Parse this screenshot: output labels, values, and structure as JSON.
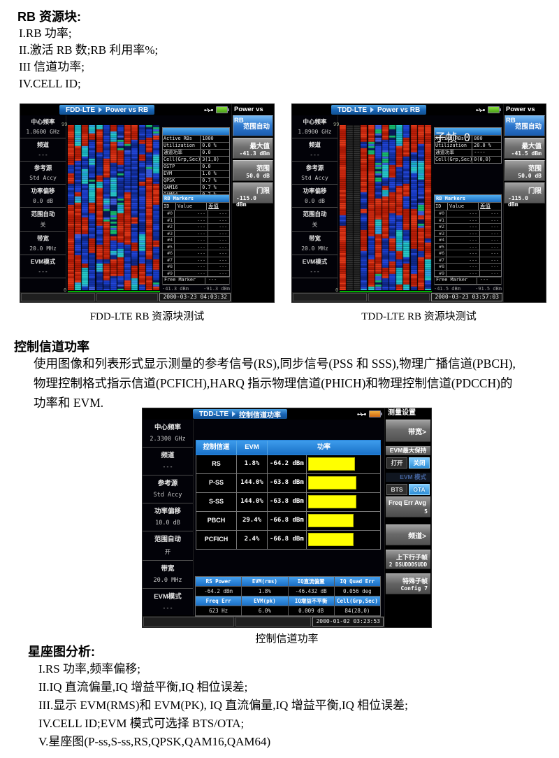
{
  "page": {
    "section1_title": "RB 资源块:",
    "section1_items": [
      "I.RB 功率;",
      "II.激活 RB 数;RB 利用率%;",
      "III 信道功率;",
      "IV.CELL  ID;"
    ],
    "caption_fdd": "FDD-LTE RB 资源块测试",
    "caption_tdd": "TDD-LTE RB 资源块测试",
    "section2_title": "控制信道功率",
    "section2_paragraph": "使用图像和列表形式显示测量的参考信号(RS),同步信号(PSS 和 SSS),物理广播信道(PBCH),物理控制格式指示信道(PCFICH),HARQ 指示物理信道(PHICH)和物理控制信道(PDCCH)的功率和 EVM.",
    "caption_ctrl": "控制信道功率",
    "section3_title": "星座图分析:",
    "section3_items": [
      "I.RS 功率,频率偏移;",
      "II.IQ 直流偏量,IQ 增益平衡,IQ 相位误差;",
      "III.显示 EVM(RMS)和 EVM(PK), IQ 直流偏量,IQ 增益平衡,IQ 相位误差;",
      "IV.CELL ID;EVM 模式可选择 BTS/OTA;",
      "V.星座图(P-ss,S-ss,RS,QPSK,QAM16,QAM64)"
    ]
  },
  "colors": {
    "accent_blue": "#1e88e5",
    "menu_selected": "#2d77cc",
    "bar_yellow": "#ffff00",
    "battery_green": "#6abe30",
    "battery_orange": "#e08818",
    "heat_red": "#d42a10",
    "heat_blue": "#1a3fd0",
    "heat_cyan": "#20c8d0"
  },
  "fdd": {
    "mode": "FDD-LTE",
    "measure": "Power vs RB",
    "sidebar": [
      {
        "label": "中心频率",
        "value": "1.8600 GHz"
      },
      {
        "label": "频道",
        "value": "---"
      },
      {
        "label": "参考源",
        "value": "Std Accy"
      },
      {
        "label": "功率偏移",
        "value": "0.0 dB"
      },
      {
        "label": "范围自动",
        "value": "关"
      },
      {
        "label": "带宽",
        "value": "20.0 MHz"
      },
      {
        "label": "EVM模式",
        "value": "---"
      }
    ],
    "axis_top": "99",
    "axis_bottom": "0",
    "info_header": "",
    "info_rows": [
      [
        "Active RBs",
        "1000"
      ],
      [
        "Utilization",
        "0.0 %"
      ],
      [
        "通道功率",
        "0.0"
      ],
      [
        "Cell(Grp,Sec)",
        "3(1,0)"
      ],
      [
        "OSTP",
        "0.0"
      ],
      [
        "EVM",
        "1.0 %"
      ],
      [
        "QPSK",
        "0.7 %"
      ],
      [
        "QAM16",
        "0.7 %"
      ],
      [
        "QAM64",
        "0.7 %"
      ]
    ],
    "markers_title": "RB Markers",
    "markers_cols": [
      "ID",
      "Value",
      "差值"
    ],
    "marker_ids": [
      "#0",
      "#1",
      "#2",
      "#3",
      "#4",
      "#5",
      "#6",
      "#7",
      "#8",
      "#9"
    ],
    "marker_value": "---",
    "marker_diff": "---",
    "free_marker_label": "Free Marker",
    "free_marker_value": "---",
    "scale_left": "-41.3 dBm",
    "scale_right": "-91.3 dBm",
    "menu_title": "Power vs RB",
    "menu_buttons": [
      {
        "label": "范围自动",
        "value": "",
        "active": true
      },
      {
        "label": "最大值",
        "value": "-41.3 dBm"
      },
      {
        "label": "范围",
        "value": "50.0 dB"
      },
      {
        "label": "门限",
        "value": "-115.0 dBm"
      }
    ],
    "timestamp": "2000-03-23 04:03:32",
    "heatmap": {
      "seed": 1337,
      "cols": 13,
      "black_cols": [],
      "red_cols": [
        0
      ]
    }
  },
  "tdd": {
    "mode": "TDD-LTE",
    "measure": "Power vs RB",
    "sidebar": [
      {
        "label": "中心频率",
        "value": "1.8900 GHz"
      },
      {
        "label": "频道",
        "value": "---"
      },
      {
        "label": "参考源",
        "value": "Std Accy"
      },
      {
        "label": "功率偏移",
        "value": "0.0 dB"
      },
      {
        "label": "范围自动",
        "value": "关"
      },
      {
        "label": "带宽",
        "value": "20.0 MHz"
      },
      {
        "label": "EVM模式",
        "value": "---"
      }
    ],
    "axis_top": "99",
    "axis_bottom": "0",
    "info_header": "子帧 0",
    "info_rows": [
      [
        "Active RBs",
        "800"
      ],
      [
        "Utilization",
        "20.0 %"
      ],
      [
        "通道功率",
        "----"
      ],
      [
        "Cell(Grp,Sec)",
        "0(0,0)"
      ]
    ],
    "markers_title": "RB Markers",
    "markers_cols": [
      "ID",
      "Value",
      "差值"
    ],
    "marker_ids": [
      "#0",
      "#1",
      "#2",
      "#3",
      "#4",
      "#5",
      "#6",
      "#7",
      "#8",
      "#9"
    ],
    "marker_value": "---",
    "marker_diff": "---",
    "free_marker_label": "Free Marker",
    "free_marker_value": "---",
    "scale_left": "-41.5 dBm",
    "scale_right": "-91.5 dBm",
    "menu_title": "Power vs RB",
    "menu_buttons": [
      {
        "label": "范围自动",
        "value": "",
        "active": true
      },
      {
        "label": "最大值",
        "value": "-41.5 dBm"
      },
      {
        "label": "范围",
        "value": "50.0 dB"
      },
      {
        "label": "门限",
        "value": "-115.0 dBm"
      }
    ],
    "timestamp": "2000-03-23 03:57:03",
    "heatmap": {
      "seed": 4242,
      "cols": 13,
      "black_cols": [
        1,
        2
      ],
      "red_cols": [
        0
      ]
    }
  },
  "ctrl": {
    "mode": "TDD-LTE",
    "measure": "控制信道功率",
    "sidebar": [
      {
        "label": "中心频率",
        "value": "2.3300 GHz"
      },
      {
        "label": "频道",
        "value": "---"
      },
      {
        "label": "参考源",
        "value": "Std Accy"
      },
      {
        "label": "功率偏移",
        "value": "10.0 dB"
      },
      {
        "label": "范围自动",
        "value": "开"
      },
      {
        "label": "带宽",
        "value": "20.0 MHz"
      },
      {
        "label": "EVM模式",
        "value": "---"
      }
    ],
    "table": {
      "col_channel": "控制信道",
      "col_evm": "EVM",
      "col_power": "功率",
      "rows": [
        {
          "ch": "RS",
          "evm": "1.8%",
          "pwr": "-64.2 dBm",
          "bar": 64
        },
        {
          "ch": "P-SS",
          "evm": "144.0%",
          "pwr": "-63.8 dBm",
          "bar": 66
        },
        {
          "ch": "S-SS",
          "evm": "144.0%",
          "pwr": "-63.8 dBm",
          "bar": 66
        },
        {
          "ch": "PBCH",
          "evm": "29.4%",
          "pwr": "-66.8 dBm",
          "bar": 62
        },
        {
          "ch": "PCFICH",
          "evm": "2.4%",
          "pwr": "-66.8 dBm",
          "bar": 62
        }
      ]
    },
    "summary": {
      "r1_headers": [
        "RS Power",
        "EVM(rms)",
        "IQ直流偏置",
        "IQ Quad Err"
      ],
      "r1_values": [
        "-64.2 dBm",
        "1.8%",
        "-46.432 dB",
        "0.056 deg"
      ],
      "r2_headers": [
        "Freq Err",
        "EVM(pk)",
        "IQ增益不平衡",
        "Cell(Grp,Sec)"
      ],
      "r2_values": [
        "623 Hz",
        "6.0%",
        "0.009 dB",
        "84(28,0)"
      ]
    },
    "menu_title": "测量设置",
    "menu": {
      "bandwidth": "带宽>",
      "evm_hold_label": "EVM最大保持",
      "toggle_on": "打开",
      "toggle_off": "关闭",
      "evm_mode_label": "EVM 模式",
      "bts": "BTS",
      "ota": "OTA",
      "freq_err_avg_label": "Freq Err Avg",
      "freq_err_avg_value": "5",
      "channel": "频道>",
      "ul_dl_label": "上下行子帧",
      "ul_dl_value": "2 DSUDDDSUDD",
      "special_label": "特殊子帧",
      "special_value": "Config 7"
    },
    "timestamp": "2000-01-02 03:23:53"
  }
}
